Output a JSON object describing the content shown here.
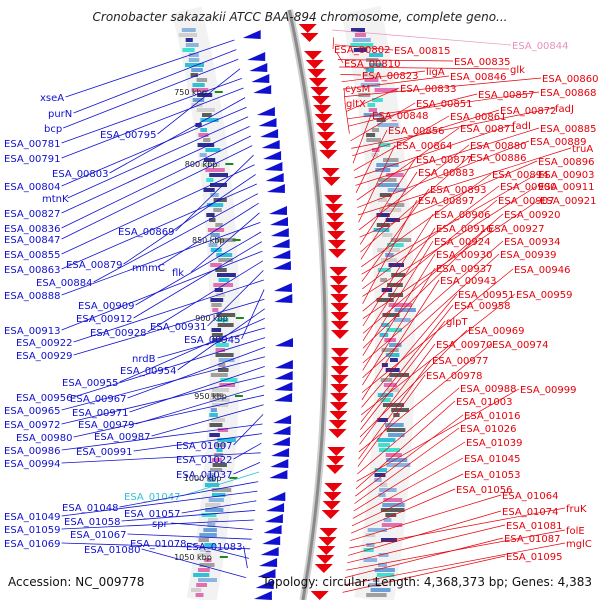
{
  "title": "Cronobacter sakazakii ATCC BAA-894 chromosome, complete geno...",
  "footer": {
    "accession": "Accession: NC_009778",
    "summary": "Topology: circular; Length: 4,368,373 bp; Genes: 4,383"
  },
  "colors": {
    "forward": "#e8000b",
    "reverse": "#1010d0",
    "highlight_forward": "#e890c0",
    "highlight_reverse": "#30c0d8",
    "backbone": "#8a8a8a",
    "tick": "#1a8a1a"
  },
  "kbp_ticks": [
    "750 kbp",
    "800 kbp",
    "850 kbp",
    "900 kbp",
    "950 kbp",
    "1000 kbp",
    "1050 kbp"
  ],
  "left_labels": [
    "xseA",
    "purN",
    "bcp",
    "ESA_00795",
    "ESA_00781",
    "ESA_00791",
    "ESA_00803",
    "ESA_00804",
    "mtnK",
    "ESA_00827",
    "ESA_00836",
    "ESA_00847",
    "ESA_00869",
    "ESA_00855",
    "ESA_00879",
    "ESA_00863",
    "ESA_00884",
    "mnmC",
    "flk",
    "ESA_00888",
    "ESA_00909",
    "ESA_00912",
    "ESA_00913",
    "ESA_00928",
    "ESA_00931",
    "ESA_00922",
    "ESA_00945",
    "ESA_00929",
    "ESA_00954",
    "ESA_00955",
    "nrdB",
    "ESA_00956",
    "ESA_00967",
    "ESA_00965",
    "ESA_00971",
    "ESA_00972",
    "ESA_00979",
    "ESA_00980",
    "ESA_00987",
    "ESA_01007",
    "ESA_00986",
    "ESA_00991",
    "ESA_01022",
    "ESA_00994",
    "ESA_01037",
    "ESA_01047",
    "ESA_01048",
    "ESA_01049",
    "ESA_01057",
    "ESA_01058",
    "ESA_01059",
    "spr",
    "ESA_01067",
    "ESA_01069",
    "ESA_01078",
    "ESA_01083",
    "ESA_01080"
  ],
  "right_labels": [
    "ESA_00844",
    "ESA_00802",
    "ESA_00815",
    "ESA_00810",
    "ESA_00835",
    "glk",
    "ESA_00823",
    "ligA",
    "ESA_00846",
    "ESA_00860",
    "cysM",
    "ESA_00833",
    "ESA_00868",
    "ESA_00857",
    "gltX",
    "ESA_00851",
    "fadJ",
    "ESA_00872",
    "ESA_00848",
    "ESA_00861",
    "fadI",
    "ESA_00885",
    "ESA_00856",
    "ESA_00871",
    "ESA_00889",
    "truA",
    "ESA_00864",
    "ESA_00880",
    "ESA_00896",
    "ESA_00877",
    "ESA_00886",
    "ESA_00883",
    "ESA_00894",
    "ESA_00903",
    "ESA_00893",
    "ESA_00900",
    "ESA_00911",
    "ESA_00897",
    "ESA_00907",
    "ESA_00921",
    "ESA_00906",
    "ESA_00920",
    "ESA_00916",
    "ESA_00927",
    "ESA_00924",
    "ESA_00934",
    "ESA_00930",
    "ESA_00939",
    "ESA_00937",
    "ESA_00946",
    "ESA_00943",
    "ESA_00951",
    "ESA_00959",
    "ESA_00958",
    "glpT",
    "ESA_00969",
    "ESA_00970",
    "ESA_00974",
    "ESA_00977",
    "ESA_00978",
    "ESA_00988",
    "ESA_00999",
    "ESA_01003",
    "ESA_01016",
    "ESA_01026",
    "ESA_01039",
    "ESA_01045",
    "ESA_01053",
    "ESA_01056",
    "ESA_01064",
    "fruK",
    "ESA_01074",
    "ESA_01081",
    "folE",
    "ESA_01087",
    "mglC",
    "ESA_01095"
  ]
}
